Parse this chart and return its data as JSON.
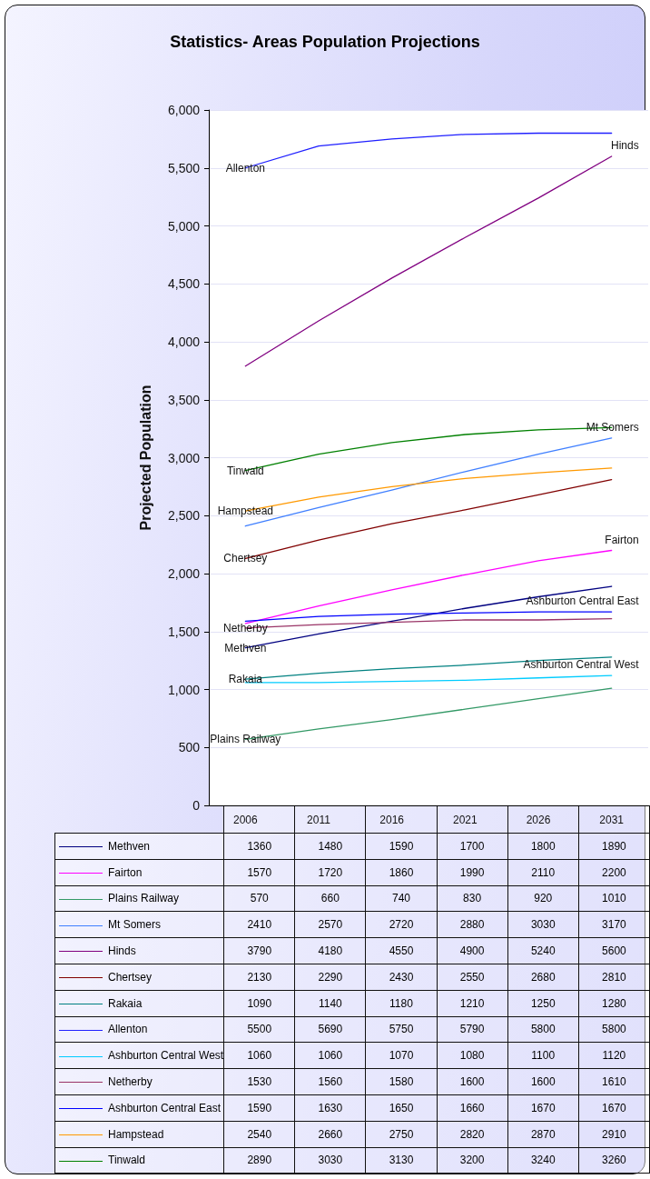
{
  "chart_data": {
    "type": "line",
    "title": "Statistics- Areas Population Projections",
    "ylabel": "Projected Population",
    "categories": [
      "2006",
      "2011",
      "2016",
      "2021",
      "2026",
      "2031"
    ],
    "series": [
      {
        "name": "Methven",
        "color": "#000080",
        "values": [
          1360,
          1480,
          1590,
          1700,
          1800,
          1890
        ]
      },
      {
        "name": "Fairton",
        "color": "#ff00ff",
        "values": [
          1570,
          1720,
          1860,
          1990,
          2110,
          2200
        ]
      },
      {
        "name": "Plains Railway",
        "color": "#339966",
        "values": [
          570,
          660,
          740,
          830,
          920,
          1010
        ]
      },
      {
        "name": "Mt Somers",
        "color": "#3f7fff",
        "values": [
          2410,
          2570,
          2720,
          2880,
          3030,
          3170
        ]
      },
      {
        "name": "Hinds",
        "color": "#800080",
        "values": [
          3790,
          4180,
          4550,
          4900,
          5240,
          5600
        ]
      },
      {
        "name": "Chertsey",
        "color": "#800000",
        "values": [
          2130,
          2290,
          2430,
          2550,
          2680,
          2810
        ]
      },
      {
        "name": "Rakaia",
        "color": "#008080",
        "values": [
          1090,
          1140,
          1180,
          1210,
          1250,
          1280
        ]
      },
      {
        "name": "Allenton",
        "color": "#1f1fff",
        "values": [
          5500,
          5690,
          5750,
          5790,
          5800,
          5800
        ]
      },
      {
        "name": "Ashburton Central West",
        "color": "#00ccff",
        "values": [
          1060,
          1060,
          1070,
          1080,
          1100,
          1120
        ]
      },
      {
        "name": "Netherby",
        "color": "#993366",
        "values": [
          1530,
          1560,
          1580,
          1600,
          1600,
          1610
        ]
      },
      {
        "name": "Ashburton Central East",
        "color": "#0000ff",
        "values": [
          1590,
          1630,
          1650,
          1660,
          1670,
          1670
        ]
      },
      {
        "name": "Hampstead",
        "color": "#ff9900",
        "values": [
          2540,
          2660,
          2750,
          2820,
          2870,
          2910
        ]
      },
      {
        "name": "Tinwald",
        "color": "#008000",
        "values": [
          2890,
          3030,
          3130,
          3200,
          3240,
          3260
        ]
      }
    ],
    "ylim": [
      0,
      6000
    ],
    "yticks": [
      0,
      500,
      {
        "value": 1000,
        "label": "1,000"
      },
      {
        "value": 1500,
        "label": "1,500"
      },
      {
        "value": 2000,
        "label": "2,000"
      },
      {
        "value": 2500,
        "label": "2,500"
      },
      {
        "value": 3000,
        "label": "3,000"
      },
      {
        "value": 3500,
        "label": "3,500"
      },
      {
        "value": 4000,
        "label": "4,000"
      },
      {
        "value": 4500,
        "label": "4,500"
      },
      {
        "value": 5000,
        "label": "5,000"
      },
      {
        "value": 5500,
        "label": "5,500"
      },
      {
        "value": 6000,
        "label": "6,000"
      }
    ],
    "grid": "y",
    "legend": "bottom",
    "data_labels": true,
    "marker": "none",
    "line_style": "solid"
  }
}
